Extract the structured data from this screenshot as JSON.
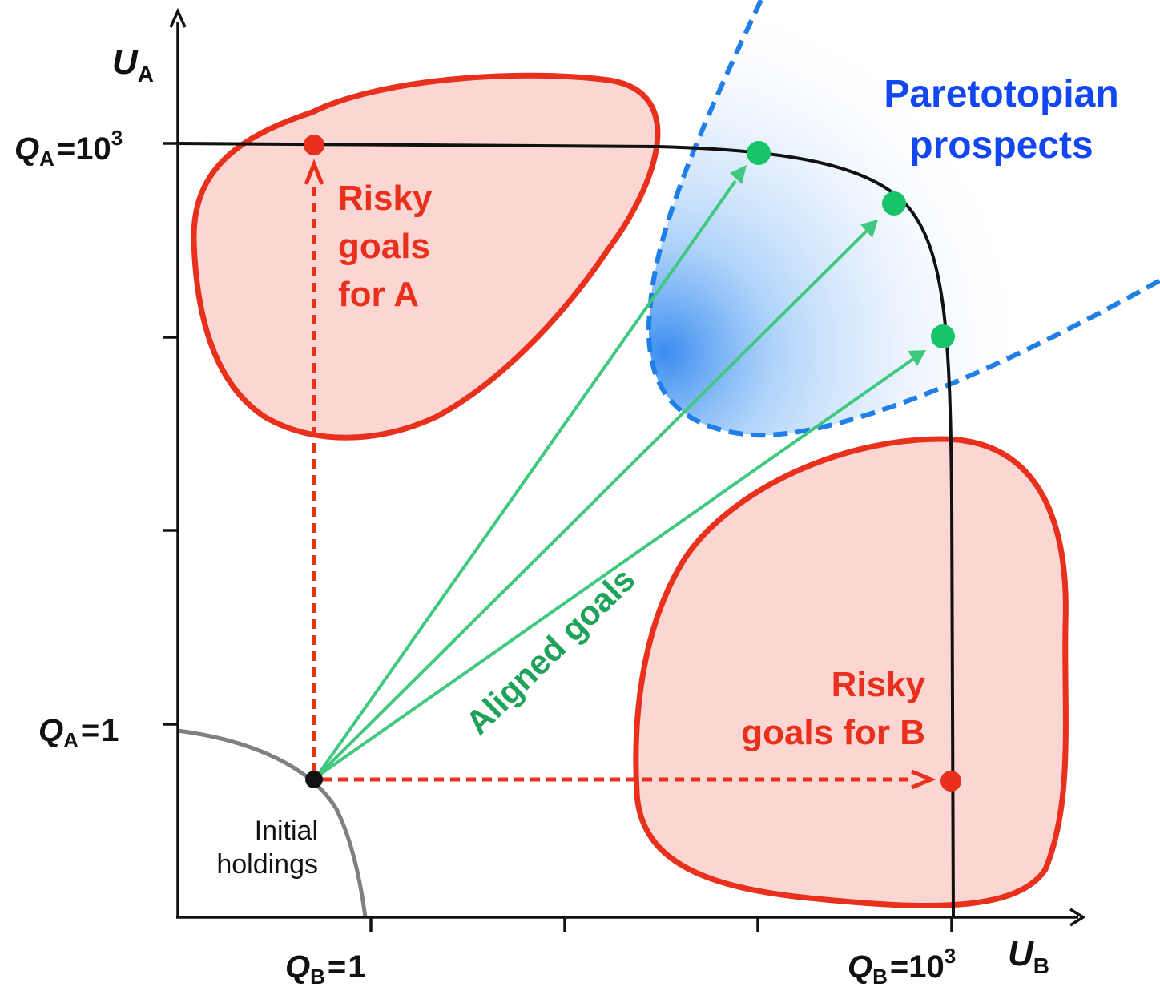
{
  "axes": {
    "y_label": {
      "var": "U",
      "sub": "A"
    },
    "x_label": {
      "var": "U",
      "sub": "B"
    }
  },
  "y_ticks": {
    "top": {
      "var": "Q",
      "sub": "A",
      "eq": "=",
      "base": "10",
      "exp": "3"
    },
    "bottom": {
      "var": "Q",
      "sub": "A",
      "eq": "=",
      "value": "1"
    }
  },
  "x_ticks": {
    "left": {
      "var": "Q",
      "sub": "B",
      "eq": "=",
      "value": "1"
    },
    "right": {
      "var": "Q",
      "sub": "B",
      "eq": "=",
      "base": "10",
      "exp": "3"
    }
  },
  "regions": {
    "paretotopian": {
      "line1": "Paretotopian",
      "line2": "prospects"
    },
    "risky_a": {
      "line1": "Risky",
      "line2": "goals",
      "line3": "for A"
    },
    "risky_b": {
      "line1": "Risky",
      "line2": "goals for B"
    },
    "aligned": {
      "label": "Aligned goals"
    },
    "initial": {
      "line1": "Initial",
      "line2": "holdings"
    }
  },
  "colors": {
    "risky": "#e8301c",
    "risky_fill": "#fbd6d2",
    "aligned": "#3ec97f",
    "aligned_text": "#1fa35a",
    "goal_point": "#17c46a",
    "pareto_blue": "#1f7fe6",
    "pareto_text": "#1246f0",
    "frontier": "#111111",
    "initial_curve": "#808080"
  }
}
